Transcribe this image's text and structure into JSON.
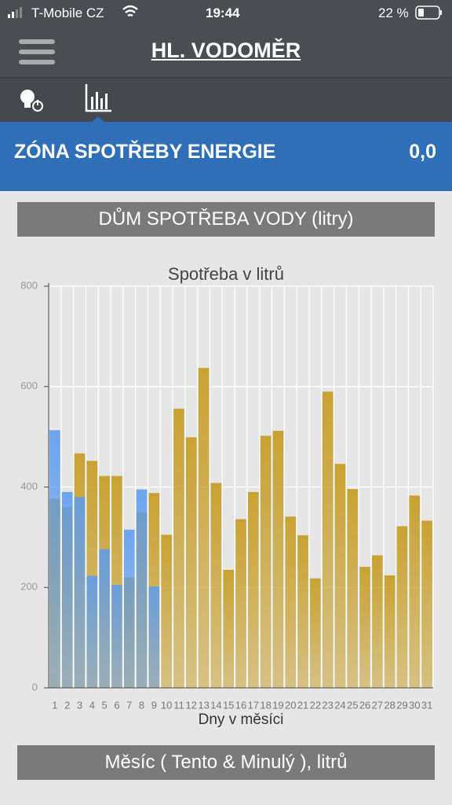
{
  "status_bar": {
    "carrier": "T-Mobile CZ",
    "time": "19:44",
    "battery": "22 %"
  },
  "header": {
    "title": "HL. VODOMĚR"
  },
  "zone": {
    "label": "ZÓNA SPOTŘEBY ENERGIE",
    "value": "0,0"
  },
  "section_button": "DŮM SPOTŘEBA VODY (litry)",
  "chart_data": {
    "type": "bar",
    "title": "Spotřeba v litrů",
    "x_label": "Dny v měsíci",
    "categories": [
      "1",
      "2",
      "3",
      "4",
      "5",
      "6",
      "7",
      "8",
      "9",
      "10",
      "11",
      "12",
      "13",
      "14",
      "15",
      "16",
      "17",
      "18",
      "19",
      "20",
      "21",
      "22",
      "23",
      "24",
      "25",
      "26",
      "27",
      "28",
      "29",
      "30",
      "31"
    ],
    "series": [
      {
        "color": "#c9a232",
        "values": [
          377,
          360,
          467,
          452,
          422,
          422,
          220,
          350,
          388,
          305,
          556,
          499,
          637,
          408,
          235,
          336,
          390,
          502,
          512,
          341,
          304,
          218,
          590,
          446,
          396,
          241,
          264,
          224,
          322,
          383,
          333
        ]
      },
      {
        "color": "#5b9cf0",
        "values": [
          513,
          390,
          380,
          223,
          276,
          205,
          315,
          395,
          202,
          null,
          null,
          null,
          null,
          null,
          null,
          null,
          null,
          null,
          null,
          null,
          null,
          null,
          null,
          null,
          null,
          null,
          null,
          null,
          null,
          null,
          null
        ]
      }
    ],
    "ylim": [
      0,
      800
    ],
    "yticks": [
      0,
      200,
      400,
      600,
      800
    ],
    "grid": true
  },
  "footer_button": "Měsíc ( Tento & Minulý ), litrů"
}
